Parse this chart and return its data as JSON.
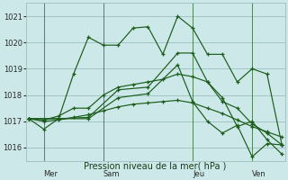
{
  "background_color": "#cce8e8",
  "grid_color": "#9bbfbf",
  "line_color": "#1a5c1a",
  "title": "Pression niveau de la mer( hPa )",
  "ylim": [
    1015.5,
    1021.5
  ],
  "yticks": [
    1016,
    1017,
    1018,
    1019,
    1020,
    1021
  ],
  "day_labels": [
    "Mer",
    "Sam",
    "Jeu",
    "Ven"
  ],
  "day_positions": [
    1,
    5,
    11,
    15
  ],
  "vline_positions": [
    1,
    5,
    11,
    15
  ],
  "lines": [
    {
      "x": [
        0,
        1,
        2,
        3,
        4,
        5,
        6,
        7,
        8,
        9,
        10,
        11,
        12,
        13,
        14,
        15,
        16,
        17
      ],
      "y": [
        1017.1,
        1016.7,
        1017.1,
        1018.8,
        1020.2,
        1019.9,
        1019.9,
        1020.55,
        1020.6,
        1019.55,
        1021.0,
        1020.55,
        1019.55,
        1019.55,
        1018.5,
        1019.0,
        1018.8,
        1016.1
      ]
    },
    {
      "x": [
        0,
        1,
        2,
        3,
        4,
        5,
        6,
        7,
        8,
        9,
        10,
        11,
        12,
        13,
        14,
        15,
        16,
        17
      ],
      "y": [
        1017.1,
        1017.05,
        1017.2,
        1017.5,
        1017.5,
        1018.0,
        1018.3,
        1018.4,
        1018.5,
        1018.6,
        1018.8,
        1018.7,
        1018.5,
        1017.75,
        1017.5,
        1016.9,
        1016.55,
        1016.1
      ]
    },
    {
      "x": [
        0,
        1,
        2,
        3,
        4,
        5,
        6,
        7,
        8,
        9,
        10,
        11,
        12,
        13,
        14,
        15,
        16,
        17
      ],
      "y": [
        1017.1,
        1017.0,
        1017.05,
        1017.15,
        1017.25,
        1017.4,
        1017.55,
        1017.65,
        1017.7,
        1017.75,
        1017.8,
        1017.7,
        1017.5,
        1017.3,
        1017.05,
        1016.8,
        1016.6,
        1016.4
      ]
    },
    {
      "x": [
        0,
        2,
        4,
        6,
        8,
        10,
        11,
        12,
        13,
        14,
        15,
        16,
        17
      ],
      "y": [
        1017.1,
        1017.1,
        1017.15,
        1018.2,
        1018.3,
        1019.6,
        1019.6,
        1018.5,
        1017.9,
        1016.8,
        1017.0,
        1016.3,
        1015.75
      ]
    },
    {
      "x": [
        0,
        2,
        4,
        6,
        8,
        10,
        11,
        12,
        13,
        14,
        15,
        16,
        17
      ],
      "y": [
        1017.1,
        1017.1,
        1017.1,
        1017.9,
        1018.05,
        1019.15,
        1017.75,
        1017.0,
        1016.55,
        1016.85,
        1015.65,
        1016.15,
        1016.1
      ]
    }
  ]
}
